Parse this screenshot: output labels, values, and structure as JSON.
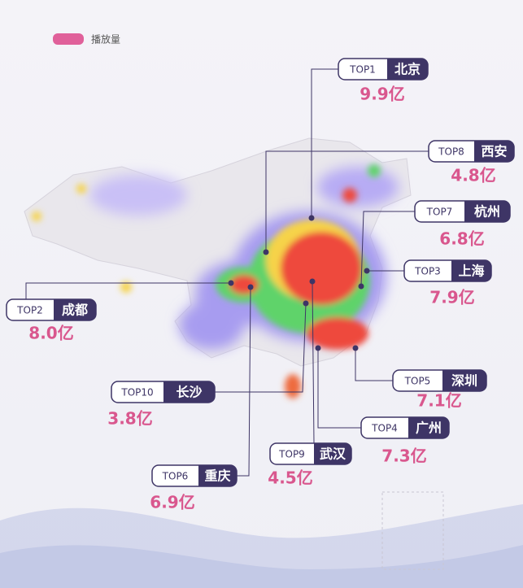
{
  "legend": {
    "label": "播放量",
    "color": "#e0609a"
  },
  "cities": [
    {
      "rank": "TOP1",
      "name": "北京",
      "plays": "9.9亿"
    },
    {
      "rank": "TOP8",
      "name": "西安",
      "plays": "4.8亿"
    },
    {
      "rank": "TOP7",
      "name": "杭州",
      "plays": "6.8亿"
    },
    {
      "rank": "TOP3",
      "name": "上海",
      "plays": "7.9亿"
    },
    {
      "rank": "TOP2",
      "name": "成都",
      "plays": "8.0亿"
    },
    {
      "rank": "TOP5",
      "name": "深圳",
      "plays": "7.1亿"
    },
    {
      "rank": "TOP4",
      "name": "广州",
      "plays": "7.3亿"
    },
    {
      "rank": "TOP10",
      "name": "长沙",
      "plays": "3.8亿"
    },
    {
      "rank": "TOP9",
      "name": "武汉",
      "plays": "4.5亿"
    },
    {
      "rank": "TOP6",
      "name": "重庆",
      "plays": "6.9亿"
    }
  ]
}
